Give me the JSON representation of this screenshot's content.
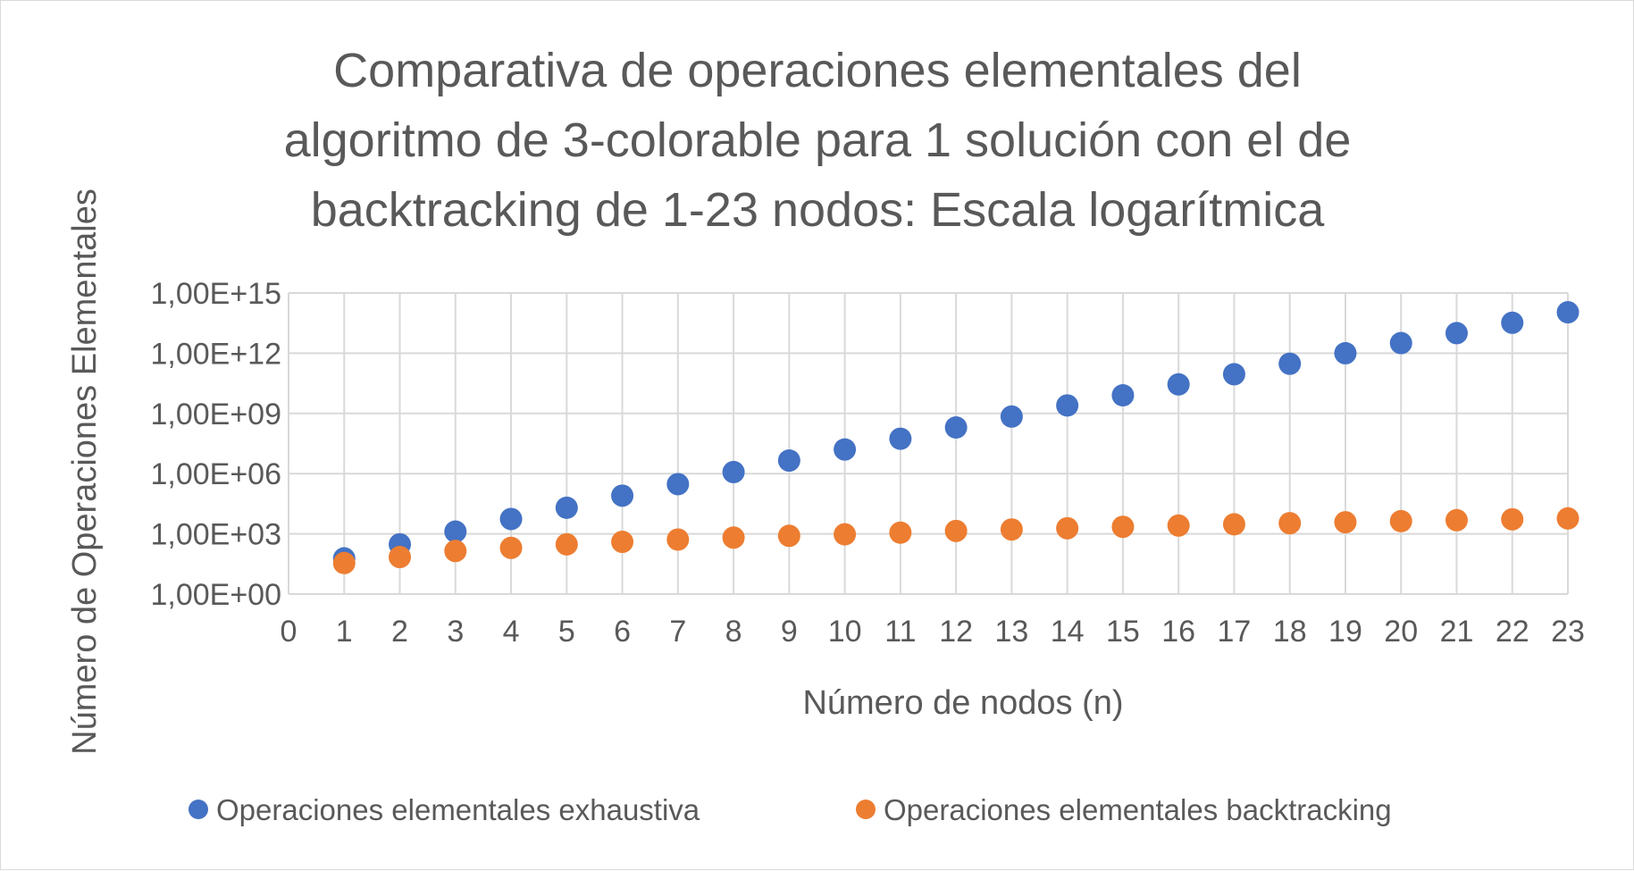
{
  "chart_data": {
    "type": "scatter",
    "title": "Comparativa de operaciones elementales del algoritmo de 3-colorable para 1 solución con el de backtracking de 1-23 nodos: Escala logarítmica",
    "title_lines": [
      "Comparativa de operaciones elementales del",
      "algoritmo de 3-colorable para 1 solución con el de",
      "backtracking de 1-23 nodos: Escala logarítmica"
    ],
    "xlabel": "Número de nodos (n)",
    "ylabel": "Número de Operaciones Elementales",
    "xlim": [
      0,
      23
    ],
    "ylim": [
      1,
      1000000000000000.0
    ],
    "yscale": "log",
    "x_ticks": [
      0,
      1,
      2,
      3,
      4,
      5,
      6,
      7,
      8,
      9,
      10,
      11,
      12,
      13,
      14,
      15,
      16,
      17,
      18,
      19,
      20,
      21,
      22,
      23
    ],
    "x_tick_labels": [
      "0",
      "1",
      "2",
      "3",
      "4",
      "5",
      "6",
      "7",
      "8",
      "9",
      "10",
      "11",
      "12",
      "13",
      "14",
      "15",
      "16",
      "17",
      "18",
      "19",
      "20",
      "21",
      "22",
      "23"
    ],
    "y_ticks": [
      1,
      1000,
      1000000,
      1000000000,
      1000000000000,
      1000000000000000
    ],
    "y_tick_labels": [
      "1,00E+00",
      "1,00E+03",
      "1,00E+06",
      "1,00E+09",
      "1,00E+12",
      "1,00E+15"
    ],
    "grid": true,
    "legend_position": "bottom",
    "series": [
      {
        "name": "Operaciones elementales exhaustiva",
        "color": "#4472C4",
        "x": [
          1,
          2,
          3,
          4,
          5,
          6,
          7,
          8,
          9,
          10,
          11,
          12,
          13,
          14,
          15,
          16,
          17,
          18,
          19,
          20,
          21,
          22,
          23
        ],
        "y": [
          60,
          300,
          1300,
          5500,
          20000,
          80000,
          300000,
          1200000,
          4500000,
          16000000,
          55000000,
          200000000,
          700000000,
          2500000000,
          8000000000,
          28000000000,
          90000000000,
          300000000000,
          1000000000000,
          3200000000000,
          10000000000000,
          33000000000000,
          110000000000000
        ]
      },
      {
        "name": "Operaciones elementales backtracking",
        "color": "#ED7D31",
        "x": [
          1,
          2,
          3,
          4,
          5,
          6,
          7,
          8,
          9,
          10,
          11,
          12,
          13,
          14,
          15,
          16,
          17,
          18,
          19,
          20,
          21,
          22,
          23
        ],
        "y": [
          35,
          70,
          140,
          200,
          300,
          400,
          520,
          650,
          800,
          950,
          1150,
          1400,
          1650,
          1900,
          2250,
          2600,
          3000,
          3400,
          3800,
          4300,
          4800,
          5300,
          5900
        ]
      }
    ]
  }
}
